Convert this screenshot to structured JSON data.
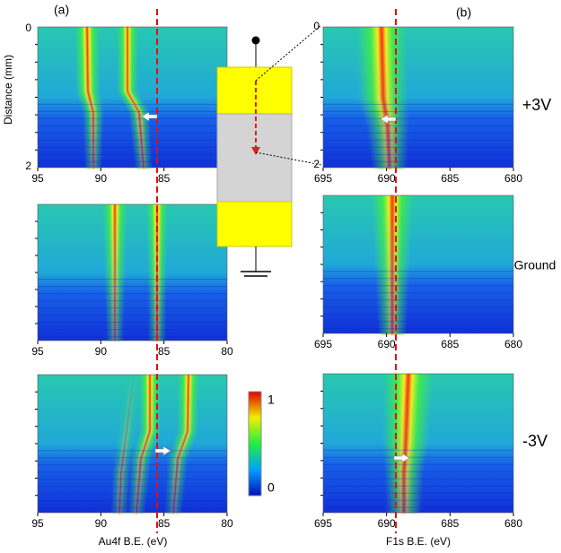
{
  "panel_a": {
    "label": "(a)",
    "y_axis_label": "Distance (mm)",
    "y_ticks": [
      0,
      2
    ],
    "x_axis_label": "Au4f B.E. (eV)",
    "x_ticks": [
      95,
      90,
      85,
      80
    ]
  },
  "panel_b": {
    "label": "(b)",
    "y_ticks": [
      0,
      2
    ],
    "x_axis_label": "F1s B.E. (eV)",
    "x_ticks": [
      695,
      690,
      685,
      680
    ]
  },
  "conditions": [
    "+3V",
    "Ground",
    "-3V"
  ],
  "colorbar": {
    "max": 1,
    "min": 0
  }
}
